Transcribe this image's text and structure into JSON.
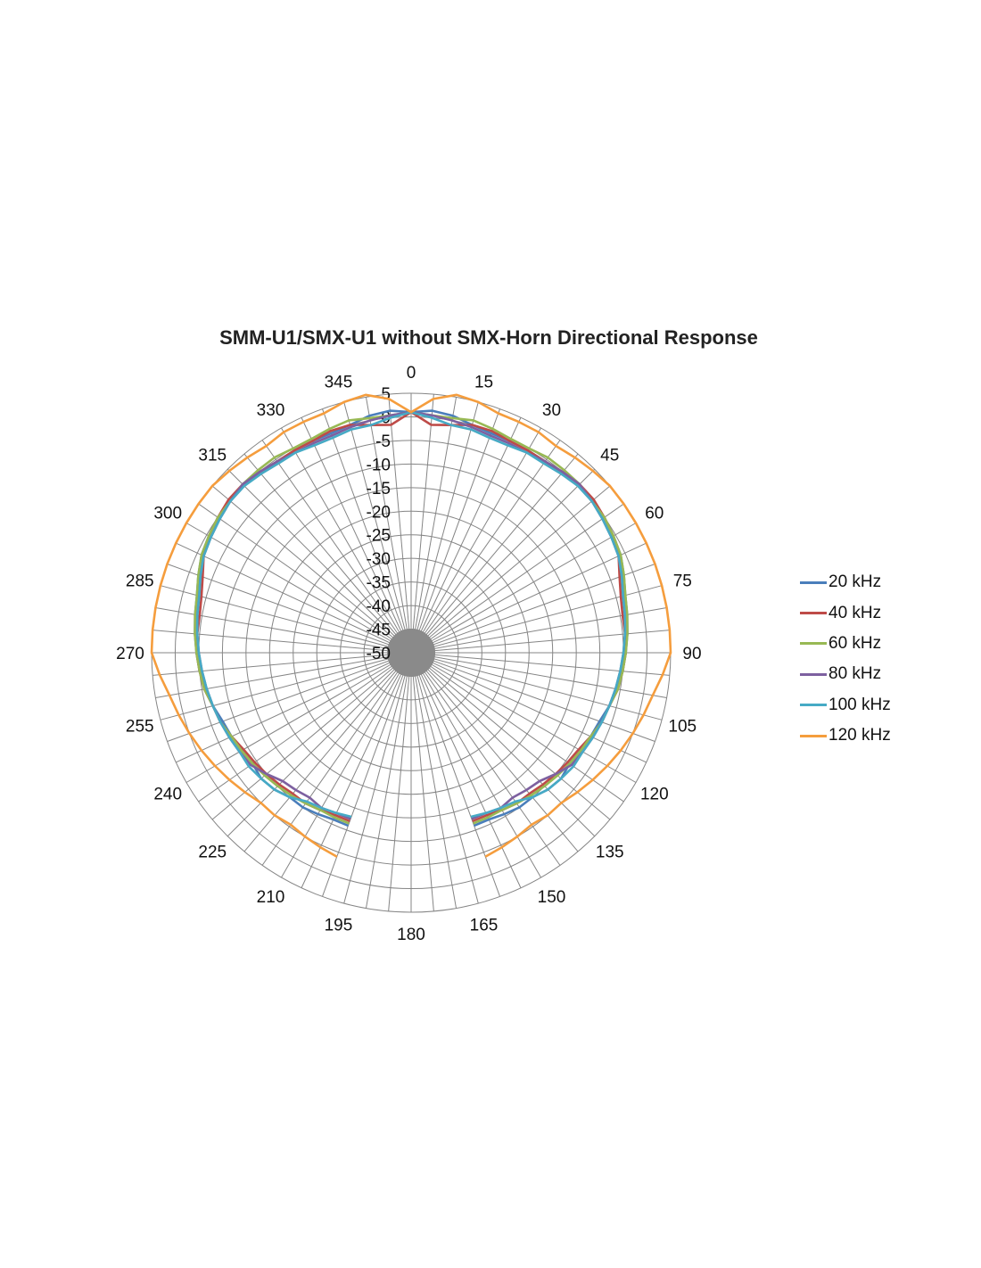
{
  "chart_data": {
    "type": "radar",
    "title": "SMM-U1/SMX-U1 without SMX-Horn Directional Response",
    "angle_tick_labels": [
      "0",
      "15",
      "30",
      "45",
      "60",
      "75",
      "90",
      "105",
      "120",
      "135",
      "150",
      "165",
      "180",
      "195",
      "210",
      "225",
      "240",
      "255",
      "270",
      "285",
      "300",
      "315",
      "330",
      "345"
    ],
    "radial_tick_labels": [
      "5",
      "0",
      "-5",
      "-10",
      "-15",
      "-20",
      "-25",
      "-30",
      "-35",
      "-40",
      "-45",
      "-50"
    ],
    "radial_range": [
      -50,
      5
    ],
    "radial_step": 5,
    "angle_grid_step": 5,
    "grid": true,
    "legend_position": "right",
    "angles": [
      0,
      5,
      10,
      15,
      20,
      25,
      30,
      35,
      40,
      45,
      50,
      55,
      60,
      65,
      70,
      75,
      80,
      85,
      90,
      95,
      100,
      105,
      110,
      115,
      120,
      125,
      130,
      135,
      140,
      145,
      150,
      155,
      160,
      200,
      205,
      210,
      215,
      220,
      225,
      230,
      235,
      240,
      245,
      250,
      255,
      260,
      265,
      270,
      275,
      280,
      285,
      290,
      295,
      300,
      305,
      310,
      315,
      320,
      325,
      330,
      335,
      340,
      345,
      350,
      355
    ],
    "series": [
      {
        "name": "20 kHz",
        "color": "#4a7ebb",
        "values": [
          1,
          1.5,
          1,
          0,
          -0.5,
          -0.5,
          -0.5,
          -0.5,
          -0.3,
          0,
          0,
          0,
          -0.5,
          -1,
          -2,
          -3,
          -3.5,
          -4,
          -4.5,
          -5,
          -6,
          -6.5,
          -7.5,
          -8,
          -8.5,
          -9,
          -8.5,
          -9,
          -10,
          -10,
          -10.5,
          -11,
          -11,
          -11,
          -11,
          -10.5,
          -10,
          -10,
          -9,
          -8.5,
          -9,
          -8.5,
          -8,
          -7.5,
          -6.5,
          -6,
          -5,
          -4.5,
          -4,
          -3.5,
          -3,
          -2,
          -1,
          -0.5,
          0,
          0,
          0,
          -0.3,
          -0.5,
          -0.5,
          -0.5,
          -0.5,
          0,
          1,
          1.5
        ]
      },
      {
        "name": "40 kHz",
        "color": "#be4b48",
        "values": [
          1,
          -1.5,
          -1,
          0,
          0,
          -0.5,
          -0.5,
          -0.5,
          0,
          0.5,
          0.5,
          0,
          -0.5,
          -1.5,
          -3,
          -4,
          -4.5,
          -4.5,
          -4.5,
          -5,
          -5.5,
          -6.5,
          -7,
          -8,
          -9,
          -9.5,
          -10,
          -10.5,
          -11,
          -11,
          -11.5,
          -12,
          -12,
          -12,
          -12,
          -11.5,
          -11,
          -11,
          -10.5,
          -10,
          -9.5,
          -9,
          -8,
          -7,
          -6.5,
          -5.5,
          -5,
          -4.5,
          -4.5,
          -4.5,
          -4,
          -3,
          -1.5,
          -0.5,
          0,
          0.5,
          0.5,
          0,
          -0.5,
          -0.5,
          -0.5,
          0,
          0,
          -1,
          -1.5
        ]
      },
      {
        "name": "60 kHz",
        "color": "#98b954",
        "values": [
          1,
          0.5,
          0.5,
          1,
          0.5,
          0,
          0,
          0.5,
          0.5,
          0.5,
          0,
          0,
          -0.5,
          -1,
          -2,
          -3,
          -3.5,
          -4,
          -4.5,
          -5,
          -5.5,
          -6.5,
          -7,
          -8,
          -8.5,
          -9,
          -9.5,
          -10,
          -10.5,
          -11,
          -11.5,
          -11.5,
          -11.5,
          -11.5,
          -11.5,
          -11.5,
          -11,
          -10.5,
          -10,
          -9.5,
          -9,
          -8.5,
          -8,
          -7,
          -6.5,
          -5.5,
          -5,
          -4.5,
          -4,
          -3.5,
          -3,
          -2,
          -1,
          -0.5,
          0,
          0,
          0.5,
          0.5,
          0.5,
          0,
          0,
          0.5,
          1,
          0.5,
          0.5
        ]
      },
      {
        "name": "80 kHz",
        "color": "#7d60a0",
        "values": [
          1,
          0.5,
          0,
          -0.5,
          -1,
          -1,
          -1,
          -0.5,
          0,
          0.5,
          0,
          -0.5,
          -1,
          -1.5,
          -2.5,
          -3.5,
          -4,
          -4.5,
          -5,
          -5.5,
          -6,
          -6.5,
          -7,
          -7.5,
          -8,
          -8.5,
          -10,
          -11.5,
          -12,
          -12.5,
          -12,
          -12.5,
          -12.5,
          -12.5,
          -12.5,
          -12,
          -12.5,
          -12,
          -11.5,
          -10,
          -8.5,
          -8,
          -7.5,
          -7,
          -6.5,
          -6,
          -5.5,
          -5,
          -4.5,
          -4,
          -3.5,
          -2.5,
          -1.5,
          -1,
          -0.5,
          0,
          0.5,
          0,
          -0.5,
          -1,
          -1,
          -1,
          -0.5,
          0,
          0.5
        ]
      },
      {
        "name": "100 kHz",
        "color": "#46aac5",
        "values": [
          1,
          0,
          -1,
          -1,
          -1.5,
          -1.5,
          -1,
          -1,
          -0.5,
          0,
          0,
          -0.5,
          -1,
          -1.5,
          -2.5,
          -3.5,
          -4,
          -4.5,
          -5,
          -5.5,
          -6,
          -6.5,
          -7,
          -7.5,
          -8,
          -8,
          -8.5,
          -9,
          -10,
          -11.5,
          -12,
          -12.5,
          -13,
          -13,
          -12.5,
          -12,
          -11.5,
          -10,
          -9,
          -8.5,
          -8,
          -8,
          -7.5,
          -7,
          -6.5,
          -6,
          -5.5,
          -5,
          -4.5,
          -4,
          -3.5,
          -2.5,
          -1.5,
          -1,
          -0.5,
          0,
          0,
          -0.5,
          -1,
          -1,
          -1.5,
          -1.5,
          -1,
          -1,
          0
        ]
      },
      {
        "name": "120 kHz",
        "color": "#f59d3d",
        "values": [
          1,
          4,
          5.5,
          5,
          4,
          4,
          4,
          3.5,
          4,
          4.5,
          5,
          5,
          5,
          5,
          5,
          5,
          5,
          5,
          5,
          3.5,
          2,
          1,
          0,
          -1,
          -2,
          -3,
          -4,
          -5,
          -5,
          -5.5,
          -5,
          -4.5,
          -4,
          -4,
          -4.5,
          -5,
          -5.5,
          -5,
          -5,
          -4,
          -3,
          -2,
          -1,
          0,
          1,
          2,
          3.5,
          5,
          5,
          5,
          5,
          5,
          5,
          5,
          5,
          5,
          4.5,
          4,
          3.5,
          4,
          4,
          4,
          5,
          5.5,
          4
        ]
      }
    ]
  }
}
